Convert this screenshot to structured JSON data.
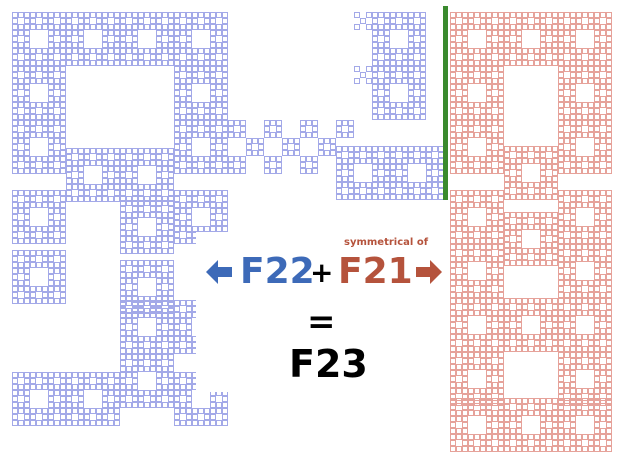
{
  "colors": {
    "left_fractal": "#a3a9e8",
    "right_fractal": "#e6a29a",
    "f22": "#3d6ab8",
    "f21": "#b5533c",
    "divider": "#3a8a2e",
    "text": "#000000"
  },
  "labels": {
    "left_term": "F22",
    "plus": "+",
    "right_term": "F21",
    "right_note": "symmetrical of",
    "equals": "=",
    "result": "F23"
  },
  "icons": {
    "left_arrow": "arrow-left-icon",
    "right_arrow": "arrow-right-icon"
  }
}
